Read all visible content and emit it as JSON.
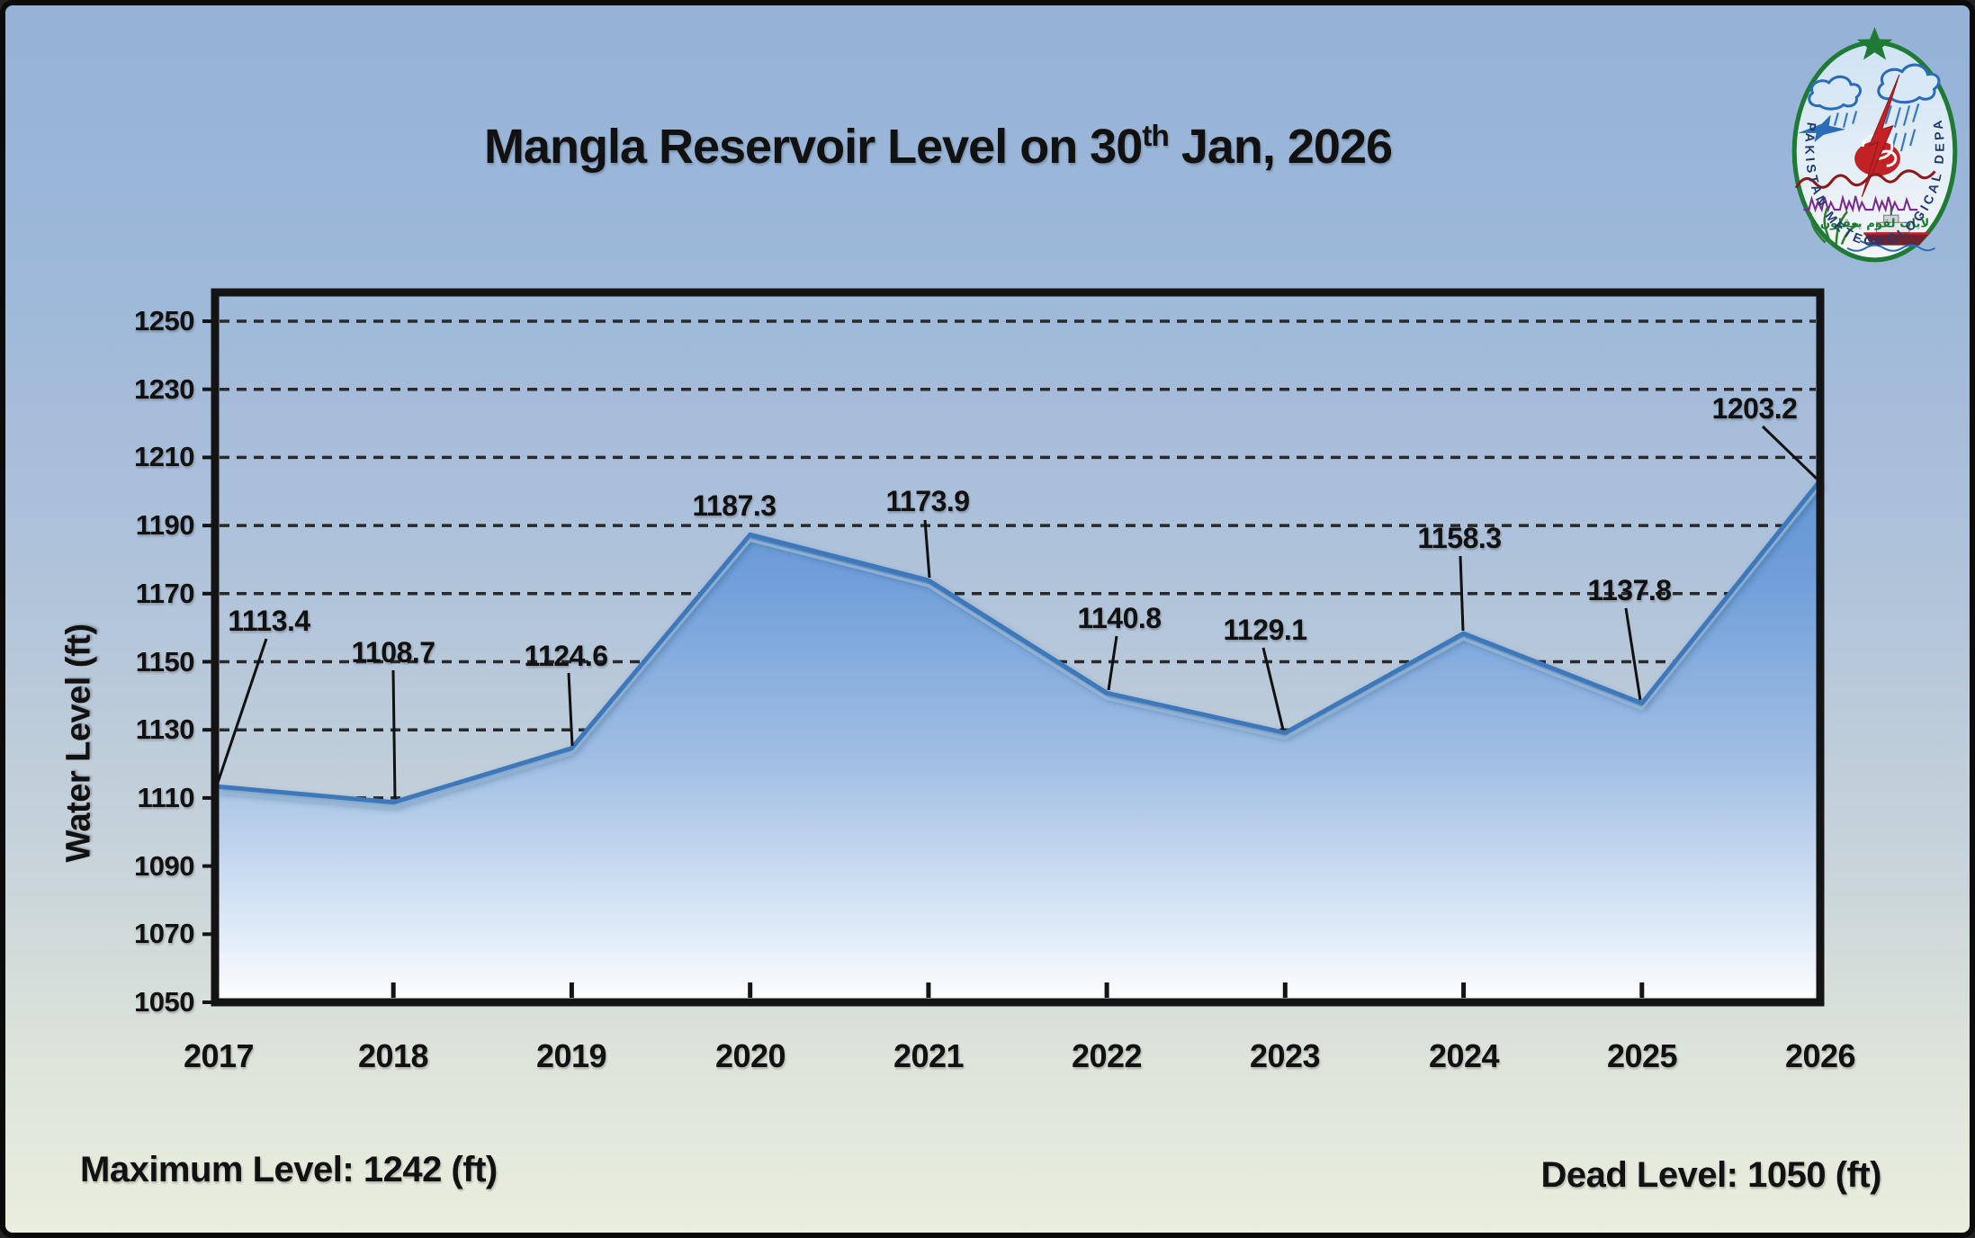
{
  "title": {
    "prefix": "Mangla Reservoir Level on 30",
    "superscript": "th",
    "suffix": " Jan, 2026"
  },
  "y_axis": {
    "title": "Water Level (ft)",
    "tick_labels": [
      "1250",
      "1230",
      "1210",
      "1190",
      "1170",
      "1150",
      "1130",
      "1110",
      "1090",
      "1070",
      "1050"
    ]
  },
  "x_axis": {
    "tick_labels": [
      "2017",
      "2018",
      "2019",
      "2020",
      "2021",
      "2022",
      "2023",
      "2024",
      "2025",
      "2026"
    ]
  },
  "annotations": {
    "max_level": "Maximum Level: 1242 (ft)",
    "dead_level": "Dead Level: 1050 (ft)"
  },
  "logo": {
    "org_text": "PAKISTAN METEOROLOGICAL DEPARTMENT",
    "arabic_motto": "لآيات لقوم يعقلون"
  },
  "chart_data": {
    "type": "area",
    "title": "Mangla Reservoir Level on 30th Jan, 2026",
    "categories": [
      2017,
      2018,
      2019,
      2020,
      2021,
      2022,
      2023,
      2024,
      2025,
      2026
    ],
    "values": [
      1113.4,
      1108.7,
      1124.6,
      1187.3,
      1173.9,
      1140.8,
      1129.1,
      1158.3,
      1137.8,
      1203.2
    ],
    "xlabel": "",
    "ylabel": "Water Level (ft)",
    "ylim": [
      1050,
      1258
    ],
    "y_tick_step": 20,
    "grid": "dashed-horizontal",
    "data_labels": true,
    "legend": "none",
    "max_level_ft": 1242,
    "dead_level_ft": 1050
  },
  "colors": {
    "area_top": "#6598d3",
    "area_bottom": "#fdfeff",
    "edge_line": "#3e78bb",
    "frame": "#141414",
    "gridline": "#2a2a2a",
    "background_top": "#95b2d7",
    "background_bottom": "#e9eede",
    "logo_green": "#1e7a34",
    "logo_red": "#c22126",
    "logo_blue": "#2b6cb8"
  }
}
